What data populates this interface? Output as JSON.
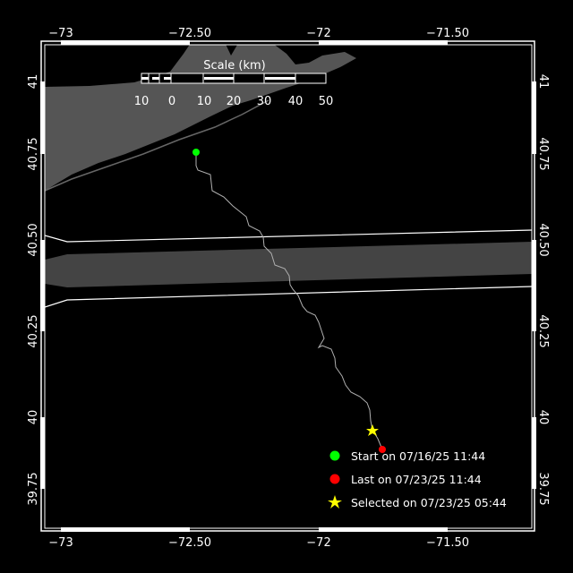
{
  "map": {
    "lon_ticks": [
      "−73",
      "−72.50",
      "−72",
      "−71.50"
    ],
    "lat_ticks": [
      "41",
      "40.75",
      "40.50",
      "40.25",
      "40",
      "39.75"
    ],
    "colors": {
      "background": "#000000",
      "land": "#555555",
      "shipping_lane": "#444444",
      "track": "#b0b0b0",
      "frame": "#ffffff"
    }
  },
  "scale_bar": {
    "title": "Scale (km)",
    "labels": [
      "10",
      "0",
      "10",
      "20",
      "30",
      "40",
      "50"
    ]
  },
  "legend": {
    "items": [
      {
        "label": "Start on 07/16/25 11:44",
        "marker": "circle",
        "color": "#00ff00"
      },
      {
        "label": "Last on 07/23/25 11:44",
        "marker": "circle",
        "color": "#ff0000"
      },
      {
        "label": "Selected on 07/23/25 05:44",
        "marker": "star",
        "color": "#ffff00"
      }
    ]
  }
}
